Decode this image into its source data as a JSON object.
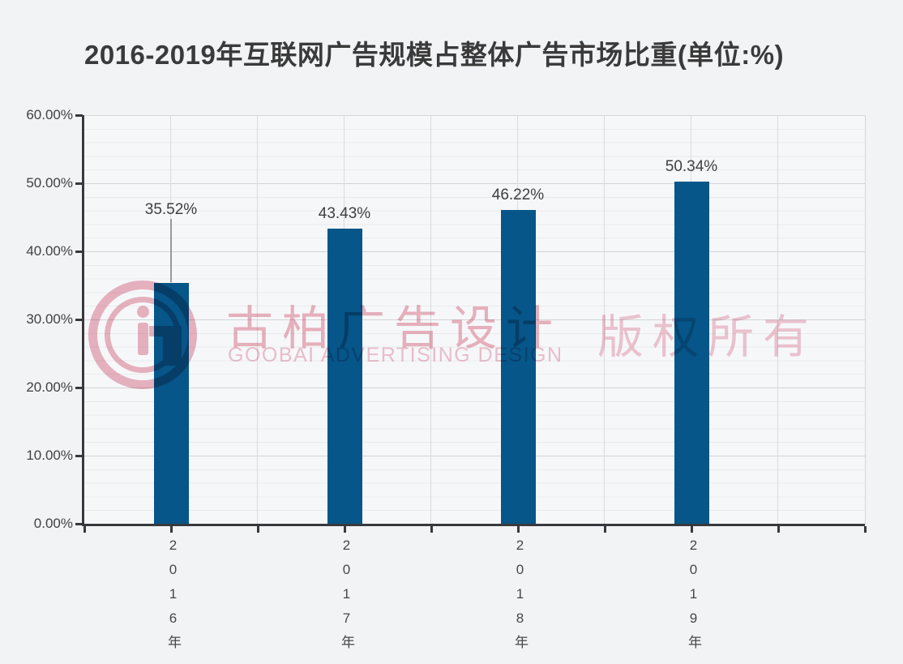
{
  "page": {
    "background": "#f2f3f5"
  },
  "chart_data": {
    "type": "bar",
    "title": "2016-2019年互联网广告规模占整体广告市场比重(单位:%)",
    "categories": [
      "2016年",
      "2017年",
      "2018年",
      "2019年"
    ],
    "values": [
      35.52,
      43.43,
      46.22,
      50.34
    ],
    "data_labels": [
      "35.52%",
      "43.43%",
      "46.22%",
      "50.34%"
    ],
    "xlabel": "",
    "ylabel": "",
    "ylim": [
      0,
      60
    ],
    "ytick_interval": 10,
    "yticks": [
      "0.00%",
      "10.00%",
      "20.00%",
      "30.00%",
      "40.00%",
      "50.00%",
      "60.00%"
    ],
    "minor_grid_interval_pct": 2,
    "grid": "horizontal major and minor lines on, vertical half-category gridlines on",
    "legend": "none",
    "bar_color": "#065689",
    "first_label_raised_with_leader_line": true
  },
  "watermark": {
    "logo": "Gi circular logo",
    "brand_cn": "古柏广告设计",
    "brand_en": "GOOBAI ADVERTISING DESIGN",
    "rights": "版权所有",
    "color_pink": "#edb6c2"
  }
}
